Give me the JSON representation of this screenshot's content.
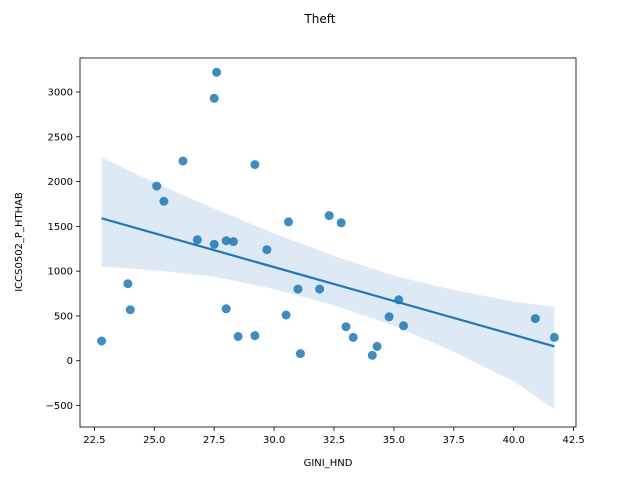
{
  "chart_data": {
    "type": "scatter",
    "title": "Theft",
    "xlabel": "GINI_HND",
    "ylabel": "ICCS0502_P_HTHAB",
    "xlim": [
      21.9,
      42.6
    ],
    "ylim": [
      -740,
      3380
    ],
    "xticks": [
      22.5,
      25.0,
      27.5,
      30.0,
      32.5,
      35.0,
      37.5,
      40.0,
      42.5
    ],
    "xtick_labels": [
      "22.5",
      "25.0",
      "27.5",
      "30.0",
      "32.5",
      "35.0",
      "37.5",
      "40.0",
      "42.5"
    ],
    "yticks": [
      -500,
      0,
      500,
      1000,
      1500,
      2000,
      2500,
      3000
    ],
    "ytick_labels": [
      "−500",
      "0",
      "500",
      "1000",
      "1500",
      "2000",
      "2500",
      "3000"
    ],
    "grid": false,
    "point_color": "#1f77b4",
    "band_color": "#c6dbef",
    "points": [
      {
        "x": 22.8,
        "y": 220
      },
      {
        "x": 23.9,
        "y": 860
      },
      {
        "x": 24.0,
        "y": 570
      },
      {
        "x": 25.1,
        "y": 1950
      },
      {
        "x": 25.4,
        "y": 1780
      },
      {
        "x": 26.2,
        "y": 2230
      },
      {
        "x": 26.8,
        "y": 1350
      },
      {
        "x": 27.5,
        "y": 2930
      },
      {
        "x": 27.6,
        "y": 3220
      },
      {
        "x": 27.5,
        "y": 1300
      },
      {
        "x": 28.0,
        "y": 1340
      },
      {
        "x": 28.3,
        "y": 1330
      },
      {
        "x": 28.0,
        "y": 580
      },
      {
        "x": 28.5,
        "y": 270
      },
      {
        "x": 29.2,
        "y": 2190
      },
      {
        "x": 29.2,
        "y": 280
      },
      {
        "x": 29.7,
        "y": 1240
      },
      {
        "x": 30.5,
        "y": 510
      },
      {
        "x": 30.6,
        "y": 1550
      },
      {
        "x": 31.0,
        "y": 800
      },
      {
        "x": 31.1,
        "y": 80
      },
      {
        "x": 31.9,
        "y": 800
      },
      {
        "x": 32.3,
        "y": 1620
      },
      {
        "x": 32.8,
        "y": 1540
      },
      {
        "x": 33.0,
        "y": 380
      },
      {
        "x": 33.3,
        "y": 260
      },
      {
        "x": 34.1,
        "y": 60
      },
      {
        "x": 34.3,
        "y": 160
      },
      {
        "x": 34.8,
        "y": 490
      },
      {
        "x": 35.2,
        "y": 680
      },
      {
        "x": 35.4,
        "y": 390
      },
      {
        "x": 40.9,
        "y": 470
      },
      {
        "x": 41.7,
        "y": 260
      }
    ],
    "regression_line": {
      "x": [
        22.8,
        41.7
      ],
      "y": [
        1590,
        160
      ]
    },
    "confidence_band": {
      "x": [
        22.8,
        25.0,
        27.5,
        30.0,
        32.5,
        35.0,
        37.5,
        40.0,
        41.7
      ],
      "upper": [
        2270,
        1990,
        1700,
        1420,
        1170,
        950,
        790,
        660,
        600
      ],
      "lower": [
        1050,
        1010,
        940,
        800,
        620,
        390,
        100,
        -230,
        -540
      ]
    }
  }
}
